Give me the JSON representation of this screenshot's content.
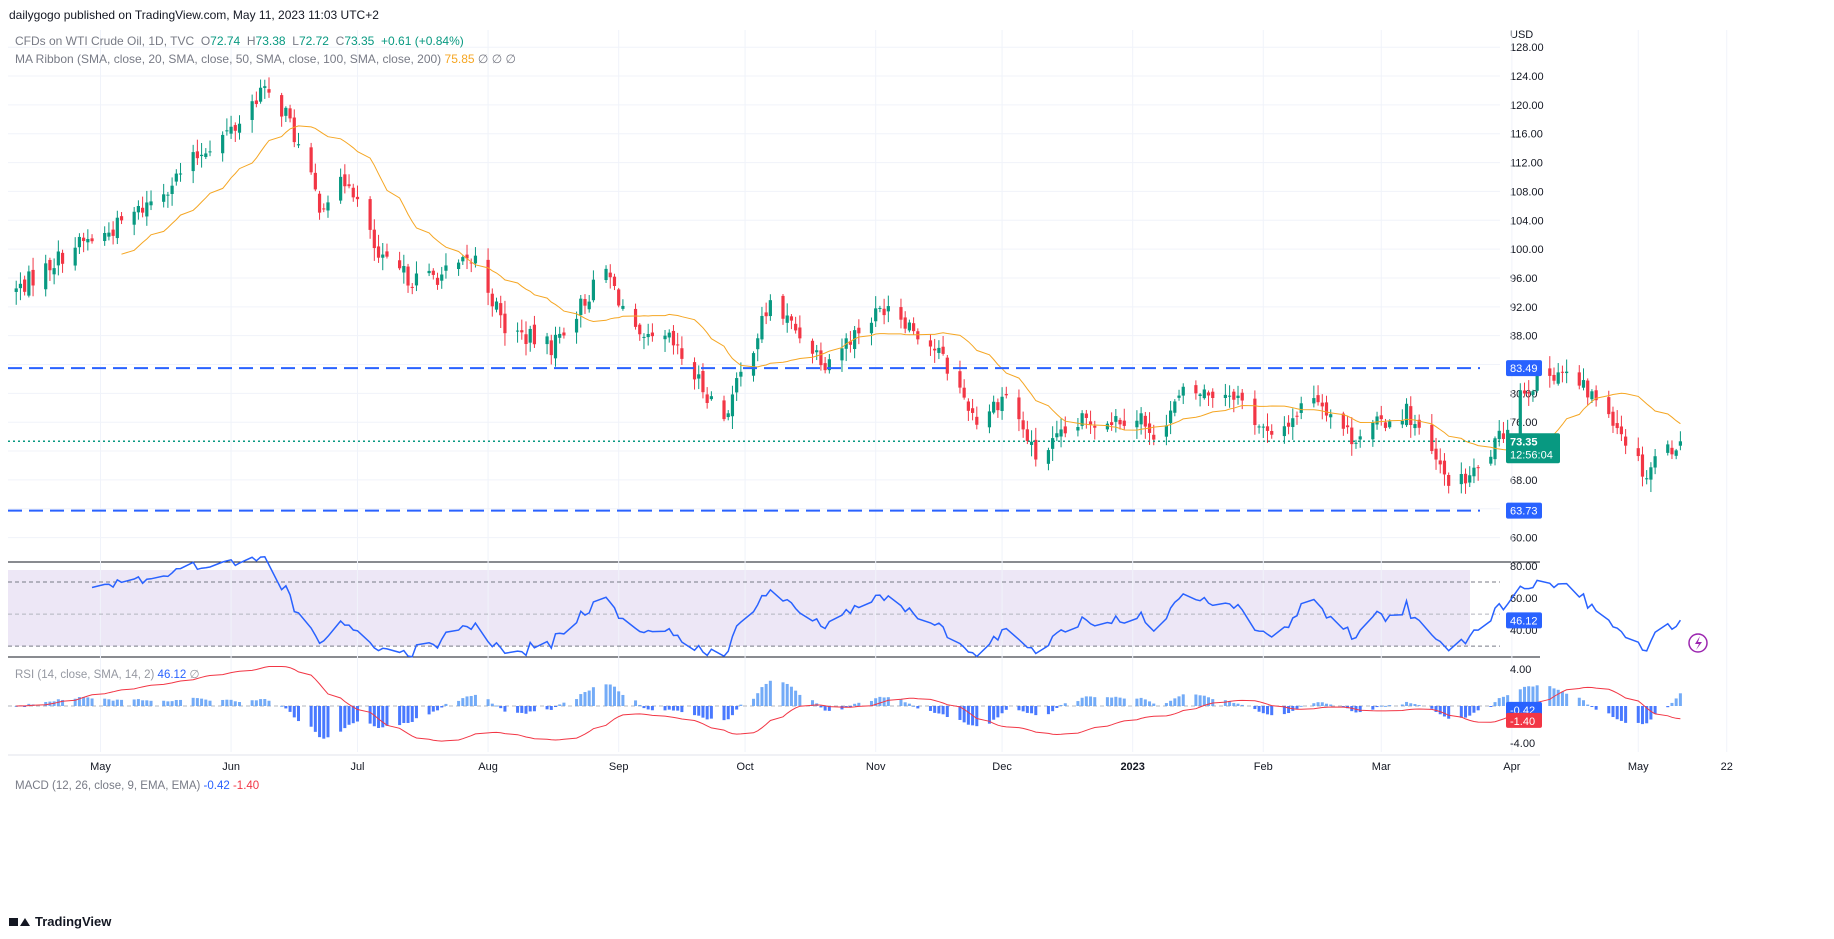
{
  "header": {
    "published": "dailygogo published on TradingView.com, May 11, 2023 11:03 UTC+2"
  },
  "legend": {
    "symbol": "CFDs on WTI Crude Oil, 1D, TVC",
    "o_label": "O",
    "o_value": "72.74",
    "h_label": "H",
    "h_value": "73.38",
    "l_label": "L",
    "l_value": "72.72",
    "c_label": "C",
    "c_value": "73.35",
    "change": "+0.61 (+0.84%)",
    "ma_ribbon": "MA Ribbon (SMA, close, 20, SMA, close, 50, SMA, close, 100, SMA, close, 200)",
    "ma_value": "75.85",
    "ma_na": "∅ ∅ ∅",
    "rsi": "RSI (14, close, SMA, 14, 2)",
    "rsi_value": "46.12",
    "rsi_na": "∅",
    "macd": "MACD (12, 26, close, 9, EMA, EMA)",
    "macd_value": "-0.42",
    "signal_value": "-1.40"
  },
  "footer": {
    "brand": "TradingView"
  },
  "colors": {
    "up": "#089981",
    "down": "#f23645",
    "ma": "#f5a623",
    "hline": "#2962ff",
    "rsi": "#2962ff",
    "macd": "#2962ff",
    "signal": "#f23645",
    "rsi_band": "#ede7f6"
  },
  "chart_data": [
    {
      "type": "candlestick",
      "title": "CFDs on WTI Crude Oil, 1D, TVC",
      "currency": "USD",
      "ylim": [
        58,
        129
      ],
      "y_ticks": [
        "128.00",
        "124.00",
        "120.00",
        "116.00",
        "112.00",
        "108.00",
        "104.00",
        "100.00",
        "96.00",
        "92.00",
        "88.00",
        "84.00",
        "80.00",
        "76.00",
        "72.00",
        "68.00",
        "64.00",
        "60.00"
      ],
      "x_ticks": [
        "May",
        "Jun",
        "Jul",
        "Aug",
        "Sep",
        "Oct",
        "Nov",
        "Dec",
        "2023",
        "Feb",
        "Mar",
        "Apr",
        "May",
        "22"
      ],
      "close_anchors": [
        {
          "date": "2022-04-11",
          "close": 94.3
        },
        {
          "date": "2022-04-25",
          "close": 100.5
        },
        {
          "date": "2022-05-02",
          "close": 102
        },
        {
          "date": "2022-05-11",
          "close": 105.7
        },
        {
          "date": "2022-05-19",
          "close": 109.9
        },
        {
          "date": "2022-05-26",
          "close": 114.1
        },
        {
          "date": "2022-06-02",
          "close": 116.9
        },
        {
          "date": "2022-06-08",
          "close": 122.1
        },
        {
          "date": "2022-06-14",
          "close": 118.9
        },
        {
          "date": "2022-06-22",
          "close": 106.2
        },
        {
          "date": "2022-06-29",
          "close": 109.8
        },
        {
          "date": "2022-07-06",
          "close": 98.5
        },
        {
          "date": "2022-07-14",
          "close": 95.8
        },
        {
          "date": "2022-07-21",
          "close": 96.4
        },
        {
          "date": "2022-07-29",
          "close": 98.6
        },
        {
          "date": "2022-08-05",
          "close": 89
        },
        {
          "date": "2022-08-16",
          "close": 86.5
        },
        {
          "date": "2022-08-29",
          "close": 97
        },
        {
          "date": "2022-09-06",
          "close": 86.9
        },
        {
          "date": "2022-09-13",
          "close": 87.3
        },
        {
          "date": "2022-09-26",
          "close": 76.7
        },
        {
          "date": "2022-10-07",
          "close": 92.6
        },
        {
          "date": "2022-10-20",
          "close": 84.5
        },
        {
          "date": "2022-11-04",
          "close": 92.6
        },
        {
          "date": "2022-11-16",
          "close": 85.6
        },
        {
          "date": "2022-11-25",
          "close": 76.3
        },
        {
          "date": "2022-12-02",
          "close": 80
        },
        {
          "date": "2022-12-09",
          "close": 71.1
        },
        {
          "date": "2022-12-20",
          "close": 76.1
        },
        {
          "date": "2023-01-03",
          "close": 76.9
        },
        {
          "date": "2023-01-05",
          "close": 73.7
        },
        {
          "date": "2023-01-13",
          "close": 79.9
        },
        {
          "date": "2023-01-25",
          "close": 80.2
        },
        {
          "date": "2023-02-03",
          "close": 73.4
        },
        {
          "date": "2023-02-13",
          "close": 80.1
        },
        {
          "date": "2023-02-22",
          "close": 73.9
        },
        {
          "date": "2023-03-07",
          "close": 77.6
        },
        {
          "date": "2023-03-16",
          "close": 68.4
        },
        {
          "date": "2023-03-20",
          "close": 67.6
        },
        {
          "date": "2023-03-24",
          "close": 69.3
        },
        {
          "date": "2023-03-30",
          "close": 74.4
        },
        {
          "date": "2023-04-03",
          "close": 80.4
        },
        {
          "date": "2023-04-12",
          "close": 83.3
        },
        {
          "date": "2023-04-24",
          "close": 77.8
        },
        {
          "date": "2023-05-03",
          "close": 68.6
        },
        {
          "date": "2023-05-05",
          "close": 71.3
        },
        {
          "date": "2023-05-11",
          "close": 73.35
        }
      ],
      "last_close": 73.35,
      "last_label": "73.35",
      "countdown": "12:56:04",
      "horizontal_lines": [
        {
          "value": 83.49,
          "label": "83.49"
        },
        {
          "value": 63.73,
          "label": "63.73"
        }
      ],
      "ma20_last": 75.85
    },
    {
      "type": "line",
      "title": "RSI (14, close, SMA, 14, 2)",
      "ylim": [
        22,
        80
      ],
      "y_ticks": [
        "80.00",
        "60.00",
        "40.00"
      ],
      "band": [
        30,
        70
      ],
      "midline": 50,
      "last_value": 46.12,
      "last_label": "46.12"
    },
    {
      "type": "bar",
      "title": "MACD (12, 26, close, 9, EMA, EMA)",
      "ylim": [
        -5,
        5
      ],
      "y_ticks": [
        "4.00",
        "-4.00"
      ],
      "macd_last": -0.42,
      "signal_last": -1.4,
      "macd_label": "-0.42",
      "signal_label": "-1.40"
    }
  ]
}
